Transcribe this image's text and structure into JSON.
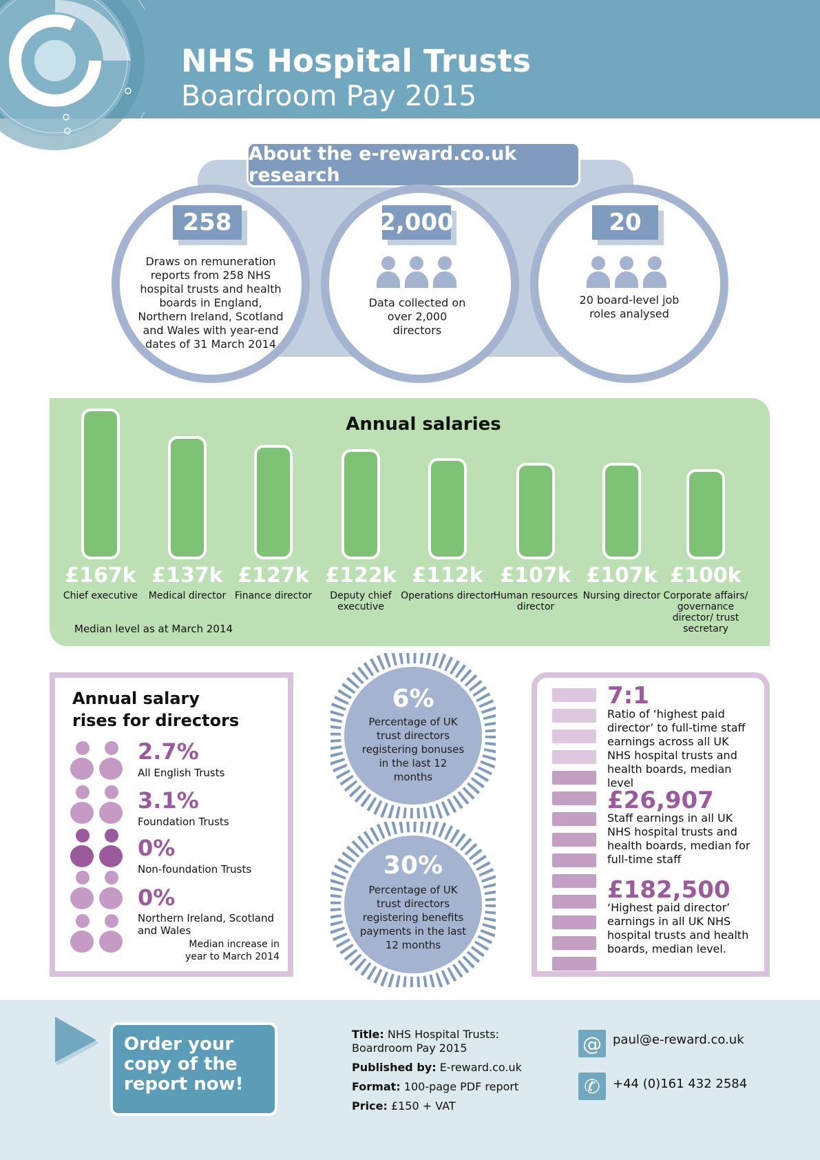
{
  "header": {
    "title": "NHS Hospital Trusts",
    "subtitle": "Boardroom Pay 2015"
  },
  "about": {
    "heading": "About the e-reward.co.uk research",
    "items": [
      {
        "number": "258",
        "text": "Draws on remuneration reports from 258 NHS hospital trusts and health boards in England, Northern Ireland, Scotland and Wales with year-end dates of 31 March 2014"
      },
      {
        "number": "2,000",
        "text": "Data collected on over 2,000 directors",
        "icon": "people-icon"
      },
      {
        "number": "20",
        "text": "20 board-level job roles analysed",
        "icon": "people-icon"
      }
    ]
  },
  "chart_data": {
    "type": "bar",
    "title": "Annual salaries",
    "note": "Median level as at March 2014",
    "unit": "£k",
    "categories": [
      "Chief executive",
      "Medical director",
      "Finance director",
      "Deputy chief executive",
      "Operations director",
      "Human resources director",
      "Nursing director",
      "Corporate affairs/ governance director/ trust secretary"
    ],
    "values": [
      167,
      137,
      127,
      122,
      112,
      107,
      107,
      100
    ],
    "value_labels": [
      "£167k",
      "£137k",
      "£127k",
      "£122k",
      "£112k",
      "£107k",
      "£107k",
      "£100k"
    ],
    "bar_color": "#7ec276",
    "grid": false
  },
  "rises": {
    "title": "Annual salary rises for directors",
    "items": [
      {
        "pct": "2.7%",
        "label": "All English Trusts"
      },
      {
        "pct": "3.1%",
        "label": "Foundation Trusts"
      },
      {
        "pct": "0%",
        "label": "Non-foundation Trusts"
      },
      {
        "pct": "0%",
        "label": "Northern Ireland, Scotland and Wales"
      }
    ],
    "note": "Median increase in year to March 2014",
    "accent_color": "#9a5a9b"
  },
  "badges": [
    {
      "pct": "6%",
      "text": "Percentage of UK trust directors registering bonuses in the last 12 months"
    },
    {
      "pct": "30%",
      "text": "Percentage of UK trust directors registering benefits payments in the last 12 months"
    }
  ],
  "pay_ratio": {
    "items": [
      {
        "big": "7:1",
        "text": "Ratio of ‘highest paid director’ to full-time staff earnings across all UK NHS hospital trusts and health boards, median level"
      },
      {
        "big": "£26,907",
        "text": "Staff earnings in all UK NHS hospital trusts and health boards, median for full-time staff"
      },
      {
        "big": "£182,500",
        "text": "‘Highest paid director’ earnings in all UK NHS hospital trusts and health boards, median level."
      }
    ],
    "ratio_counts": {
      "director": 7,
      "staff": 1
    }
  },
  "footer": {
    "order_cta": "Order your copy of the report now!",
    "title_label": "Title:",
    "title_value": "NHS Hospital Trusts: Boardroom Pay 2015",
    "published_label": "Published by:",
    "published_value": "E-reward.co.uk",
    "format_label": "Format:",
    "format_value": "100-page PDF report",
    "price_label": "Price:",
    "price_value": "£150 + VAT",
    "email": "paul@e-reward.co.uk",
    "phone": "+44 (0)161 432 2584"
  },
  "colors": {
    "header_bg": "#72a8bf",
    "about_accent": "#7f9bbd",
    "salary_panel": "#bcdfb3",
    "purple_accent": "#9a5a9b",
    "footer_bg": "#dce9ef"
  }
}
